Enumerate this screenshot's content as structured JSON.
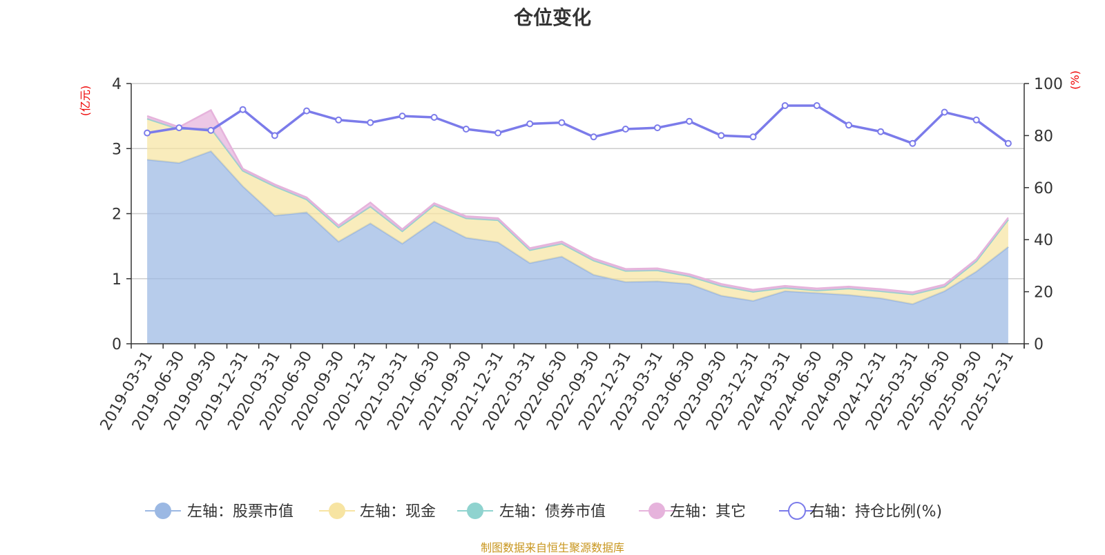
{
  "chart_data": {
    "type": "area",
    "title": "仓位变化",
    "source": "制图数据来自恒生聚源数据库",
    "left_axis": {
      "label": "(亿元)",
      "ylim": [
        0,
        4
      ],
      "ticks": [
        "0",
        "1",
        "2",
        "3",
        "4"
      ]
    },
    "right_axis": {
      "label": "(%)",
      "ylim": [
        0,
        100
      ],
      "ticks": [
        "0",
        "20",
        "40",
        "60",
        "80",
        "100"
      ]
    },
    "categories": [
      "2019-03-31",
      "2019-06-30",
      "2019-09-30",
      "2019-12-31",
      "2020-03-31",
      "2020-06-30",
      "2020-09-30",
      "2020-12-31",
      "2021-03-31",
      "2021-06-30",
      "2021-09-30",
      "2021-12-31",
      "2022-03-31",
      "2022-06-30",
      "2022-09-30",
      "2022-12-31",
      "2023-03-31",
      "2023-06-30",
      "2023-09-30",
      "2023-12-31",
      "2024-03-31",
      "2024-06-30",
      "2024-09-30",
      "2024-12-31",
      "2025-03-31",
      "2025-06-30",
      "2025-09-30",
      "2025-12-31"
    ],
    "series": [
      {
        "name": "左轴：股票市值",
        "axis": "left",
        "color": "#9bb8e3",
        "values": [
          2.83,
          2.78,
          2.96,
          2.42,
          1.97,
          2.02,
          1.57,
          1.85,
          1.54,
          1.88,
          1.63,
          1.56,
          1.24,
          1.34,
          1.06,
          0.95,
          0.96,
          0.92,
          0.74,
          0.66,
          0.81,
          0.78,
          0.75,
          0.7,
          0.61,
          0.81,
          1.11,
          1.49
        ]
      },
      {
        "name": "左轴：现金",
        "axis": "left",
        "color": "#f7e4a2",
        "values": [
          0.63,
          0.52,
          0.35,
          0.24,
          0.45,
          0.2,
          0.22,
          0.26,
          0.19,
          0.25,
          0.3,
          0.34,
          0.2,
          0.2,
          0.22,
          0.17,
          0.17,
          0.12,
          0.15,
          0.14,
          0.05,
          0.04,
          0.1,
          0.11,
          0.15,
          0.07,
          0.16,
          0.42
        ]
      },
      {
        "name": "左轴：债券市值",
        "axis": "left",
        "color": "#8fd3cf",
        "values": [
          0,
          0,
          0,
          0,
          0,
          0,
          0,
          0,
          0,
          0,
          0,
          0,
          0,
          0,
          0,
          0,
          0,
          0,
          0,
          0,
          0,
          0,
          0,
          0,
          0,
          0,
          0,
          0
        ]
      },
      {
        "name": "左轴：其它",
        "axis": "left",
        "color": "#e6b3dc",
        "values": [
          0.04,
          0.03,
          0.28,
          0.03,
          0.03,
          0.03,
          0.03,
          0.06,
          0.03,
          0.03,
          0.03,
          0.03,
          0.03,
          0.03,
          0.03,
          0.03,
          0.03,
          0.03,
          0.03,
          0.03,
          0.03,
          0.03,
          0.03,
          0.03,
          0.03,
          0.03,
          0.03,
          0.03
        ]
      },
      {
        "name": "右轴：持仓比例(%)",
        "axis": "right",
        "color": "#7b7bea",
        "values": [
          81,
          83,
          82,
          90,
          80,
          89.5,
          86,
          85,
          87.5,
          87,
          82.5,
          81,
          84.5,
          85,
          79.5,
          82.5,
          83,
          85.5,
          80,
          79.5,
          91.5,
          91.5,
          84,
          81.5,
          77,
          89,
          86,
          77
        ]
      }
    ],
    "legend_position": "bottom"
  }
}
